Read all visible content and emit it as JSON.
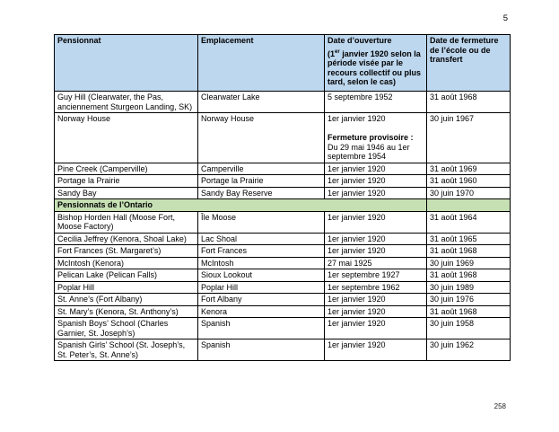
{
  "page": {
    "top_page_number": "5",
    "bottom_page_number": "258"
  },
  "colors": {
    "header_bg": "#BDD7EE",
    "section_bg": "#C6E0B4",
    "border": "#000000"
  },
  "table": {
    "headers": {
      "col1": "Pensionnat",
      "col2": "Emplacement",
      "col3_title": "Date d’ouverture",
      "col3_sub_pre": "(1",
      "col3_sub_sup": "er",
      "col3_sub_post": " janvier 1920 selon la période visée par le recours collectif ou plus tard, selon le cas)",
      "col4": "Date de fermeture de l’école ou de transfert"
    },
    "rows": [
      {
        "type": "data",
        "pensionnat": "Guy Hill (Clearwater, the Pas, anciennement Sturgeon Landing, SK)",
        "emplacement": "Clearwater Lake",
        "ouverture": [
          {
            "text": "5 septembre 1952"
          }
        ],
        "fermeture": "31 août 1968"
      },
      {
        "type": "data",
        "pensionnat": "Norway House",
        "emplacement": "Norway House",
        "ouverture": [
          {
            "text": "1er janvier 1920"
          },
          {
            "text": ""
          },
          {
            "text": "Fermeture provisoire :",
            "bold": true
          },
          {
            "text": "Du 29 mai 1946 au 1er septembre 1954"
          }
        ],
        "fermeture": "30 juin 1967"
      },
      {
        "type": "data",
        "pensionnat": "Pine Creek (Camperville)",
        "emplacement": "Camperville",
        "ouverture": [
          {
            "text": "1er janvier 1920"
          }
        ],
        "fermeture": "31 août 1969"
      },
      {
        "type": "data",
        "pensionnat": "Portage la Prairie",
        "emplacement": "Portage la Prairie",
        "ouverture": [
          {
            "text": "1er janvier 1920"
          }
        ],
        "fermeture": "31 août 1960"
      },
      {
        "type": "data",
        "pensionnat": "Sandy Bay",
        "emplacement": "Sandy Bay Reserve",
        "ouverture": [
          {
            "text": "1er janvier 1920"
          }
        ],
        "fermeture": "30 juin 1970"
      },
      {
        "type": "section",
        "label": "Pensionnats de l’Ontario"
      },
      {
        "type": "data",
        "pensionnat": "Bishop Horden Hall (Moose Fort, Moose Factory)",
        "emplacement": "Île Moose",
        "ouverture": [
          {
            "text": "1er janvier 1920"
          }
        ],
        "fermeture": "31 août 1964"
      },
      {
        "type": "data",
        "pensionnat": "Cecilia Jeffrey (Kenora, Shoal Lake)",
        "emplacement": "Lac Shoal",
        "ouverture": [
          {
            "text": "1er janvier 1920"
          }
        ],
        "fermeture": "31 août 1965"
      },
      {
        "type": "data",
        "pensionnat": "Fort Frances (St. Margaret’s)",
        "emplacement": "Fort Frances",
        "ouverture": [
          {
            "text": "1er janvier 1920"
          }
        ],
        "fermeture": "31 août 1968"
      },
      {
        "type": "data",
        "pensionnat": "McIntosh (Kenora)",
        "emplacement": "McIntosh",
        "ouverture": [
          {
            "text": "27 mai 1925"
          }
        ],
        "fermeture": "30 juin 1969"
      },
      {
        "type": "data",
        "pensionnat": "Pelican Lake (Pelican Falls)",
        "emplacement": "Sioux Lookout",
        "ouverture": [
          {
            "text": "1er septembre 1927"
          }
        ],
        "fermeture": "31 août 1968"
      },
      {
        "type": "data",
        "pensionnat": "Poplar Hill",
        "emplacement": "Poplar Hill",
        "ouverture": [
          {
            "text": "1er septembre 1962"
          }
        ],
        "fermeture": "30 juin 1989"
      },
      {
        "type": "data",
        "pensionnat": "St. Anne’s (Fort Albany)",
        "emplacement": "Fort Albany",
        "ouverture": [
          {
            "text": "1er janvier 1920"
          }
        ],
        "fermeture": "30 juin 1976"
      },
      {
        "type": "data",
        "pensionnat": "St. Mary’s (Kenora, St. Anthony’s)",
        "emplacement": "Kenora",
        "ouverture": [
          {
            "text": "1er janvier 1920"
          }
        ],
        "fermeture": "31 août 1968"
      },
      {
        "type": "data",
        "pensionnat": "Spanish Boys’ School (Charles Garnier, St. Joseph’s)",
        "emplacement": "Spanish",
        "ouverture": [
          {
            "text": "1er janvier 1920"
          }
        ],
        "fermeture": "30 juin 1958"
      },
      {
        "type": "data",
        "pensionnat": "Spanish Girls’ School (St. Joseph’s, St. Peter’s, St. Anne’s)",
        "emplacement": "Spanish",
        "ouverture": [
          {
            "text": "1er janvier 1920"
          }
        ],
        "fermeture": "30 juin 1962"
      }
    ]
  }
}
